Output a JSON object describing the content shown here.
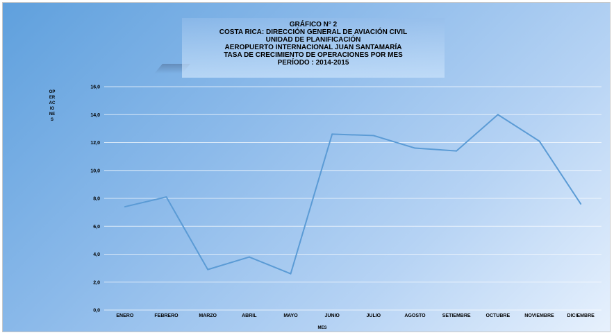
{
  "chart_data": {
    "type": "line",
    "title_lines": [
      "GRÁFICO N° 2",
      "COSTA RICA: DIRECCIÓN GENERAL DE AVIACIÓN CIVIL",
      "UNIDAD DE PLANIFICACIÓN",
      "AEROPUERTO INTERNACIONAL JUAN SANTAMARÍA",
      "TASA DE CRECIMIENTO DE OPERACIONES  POR MES",
      "PERÍODO : 2014-2015"
    ],
    "xlabel": "MES",
    "ylabel": "OPERACIONES",
    "categories": [
      "ENERO",
      "FEBRERO",
      "MARZO",
      "ABRIL",
      "MAYO",
      "JUNIO",
      "JULIO",
      "AGOSTO",
      "SETIEMBRE",
      "OCTUBRE",
      "NOVIEMBRE",
      "DICIEMBRE"
    ],
    "values": [
      7.4,
      8.1,
      2.9,
      3.8,
      2.6,
      12.6,
      12.5,
      11.6,
      11.4,
      14.0,
      12.1,
      7.6
    ],
    "ylim": [
      0,
      16
    ],
    "yticks": [
      "0,0",
      "2,0",
      "4,0",
      "6,0",
      "8,0",
      "10,0",
      "12,0",
      "14,0",
      "16,0"
    ],
    "grid": true,
    "line_color": "#5b9bd5"
  }
}
